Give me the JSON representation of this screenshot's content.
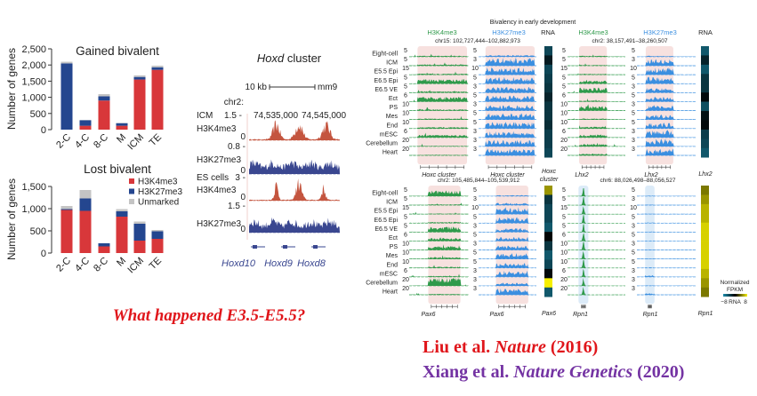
{
  "chart_data": [
    {
      "type": "bar",
      "stacked": true,
      "title": "Gained bivalent",
      "ylabel": "Number of genes",
      "xlabel": "",
      "ylim": [
        0,
        2500
      ],
      "ytick_labels": [
        "0",
        "500",
        "1,000",
        "1,500",
        "2,000",
        "2,500"
      ],
      "yticks": [
        0,
        500,
        1000,
        1500,
        2000,
        2500
      ],
      "categories": [
        "2-C",
        "4-C",
        "8-C",
        "M",
        "ICM",
        "TE"
      ],
      "series": [
        {
          "name": "H3K4me3",
          "color": "#d8373a",
          "values": [
            0,
            120,
            900,
            120,
            1550,
            1850
          ]
        },
        {
          "name": "H3K27me3",
          "color": "#24468f",
          "values": [
            2050,
            170,
            130,
            80,
            80,
            80
          ]
        },
        {
          "name": "Unmarked",
          "color": "#c4c4c4",
          "values": [
            50,
            10,
            70,
            10,
            50,
            50
          ]
        }
      ]
    },
    {
      "type": "bar",
      "stacked": true,
      "title": "Lost bivalent",
      "ylabel": "Number of genes",
      "xlabel": "",
      "ylim": [
        0,
        1500
      ],
      "ytick_labels": [
        "0",
        "500",
        "1,000",
        "1,500"
      ],
      "yticks": [
        0,
        500,
        1000,
        1500
      ],
      "categories": [
        "2-C",
        "4-C",
        "8-C",
        "M",
        "ICM",
        "TE"
      ],
      "legend": [
        "H3K4me3",
        "H3K27me3",
        "Unmarked"
      ],
      "legend_position": "top-right",
      "series": [
        {
          "name": "H3K4me3",
          "color": "#d8373a",
          "values": [
            970,
            950,
            150,
            820,
            280,
            320
          ]
        },
        {
          "name": "H3K27me3",
          "color": "#24468f",
          "values": [
            20,
            280,
            70,
            120,
            380,
            170
          ]
        },
        {
          "name": "Unmarked",
          "color": "#c4c4c4",
          "values": [
            70,
            190,
            0,
            50,
            50,
            30
          ]
        }
      ]
    }
  ],
  "hoxd": {
    "title_italic": "Hoxd",
    "title_rest": "cluster",
    "scale_label": "10 kb",
    "assembly": "mm9",
    "chr": "chr2:",
    "coords": [
      "74,535,000",
      "74,545,000"
    ],
    "groups": [
      "ICM",
      "ES cells"
    ],
    "tracks": [
      {
        "mark": "H3K4me3",
        "max": "1.5 -",
        "min": "0",
        "color": "#c4553f"
      },
      {
        "mark": "H3K27me3",
        "max": "0.8 -",
        "min": "0",
        "color": "#3a4790"
      },
      {
        "mark": "H3K4me3",
        "max": "3 -",
        "min": "0",
        "color": "#c4553f"
      },
      {
        "mark": "H3K27me3",
        "max": "1.5 -",
        "min": "0",
        "color": "#3a4790"
      }
    ],
    "genes": [
      "Hoxd10",
      "Hoxd9",
      "Hoxd8"
    ]
  },
  "question": "What happened E3.5-E5.5?",
  "bivalency": {
    "title": "Bivalency in early development",
    "header_k4": "H3K4me3",
    "header_k27": "H3K27me3",
    "header_rna": "RNA",
    "k4_color": "#2f9a4b",
    "k27_color": "#3b8fe0",
    "samples": [
      "Eight-cell",
      "ICM",
      "E5.5 Epi",
      "E6.5 Epi",
      "E6.5 VE",
      "Ect",
      "PS",
      "Mes",
      "End",
      "mESC",
      "Cerebellum",
      "Heart"
    ],
    "k4_scales": [
      "5",
      "5",
      "15",
      "5",
      "5",
      "6",
      "10",
      "10",
      "10",
      "6",
      "20",
      "20"
    ],
    "k27_scales": [
      "5",
      "3",
      "10",
      "5",
      "3",
      "5",
      "3",
      "5",
      "5",
      "3",
      "3",
      "3"
    ],
    "panels": [
      {
        "chr": "chr15: 102,727,444–102,882,973",
        "gene": "Hoxc cluster",
        "rna_label": [
          "Hoxc",
          "cluster"
        ],
        "rna_values": [
          -4,
          -1.5,
          -4,
          -3.5,
          -3,
          -2,
          -3,
          -3,
          -2.5,
          -3.5,
          -3.5,
          -4
        ]
      },
      {
        "chr": "chr2: 38,157,491–38,260,507",
        "gene": "Lhx2",
        "rna_label": [
          "Lhx2"
        ],
        "rna_values": [
          -5,
          -2,
          -5,
          -3,
          -3,
          -0.5,
          -4.5,
          -1,
          -0.5,
          -3.5,
          -4,
          -5
        ]
      },
      {
        "chr": "chr2: 105,485,844–105,539,912",
        "gene": "Pax6",
        "rna_label": [
          "Pax6"
        ],
        "rna_values": [
          5,
          -3,
          -4,
          -4,
          -5,
          -0.2,
          -3,
          -5,
          -4,
          -0.5,
          8,
          -5
        ]
      },
      {
        "chr": "chr6: 88,026,498–88,056,527",
        "gene": "Rpn1",
        "rna_label": [
          "Rpn1"
        ],
        "rna_values": [
          4,
          5,
          6,
          6,
          7,
          7,
          7,
          7,
          7,
          6,
          5,
          4
        ]
      }
    ],
    "legend": {
      "line1": "Normalized",
      "line2": "FPKM",
      "min": "−8",
      "label": "RNA",
      "max": "8",
      "colors": [
        "#1b8cab",
        "#000000",
        "#f6ef00"
      ]
    }
  },
  "citations": [
    {
      "authors": "Liu et al.",
      "journal": "Nature",
      "year": "(2016)",
      "color": "#e0161b"
    },
    {
      "authors": "Xiang et al.",
      "journal": "Nature Genetics",
      "year": "(2020)",
      "color": "#7433a3"
    }
  ]
}
